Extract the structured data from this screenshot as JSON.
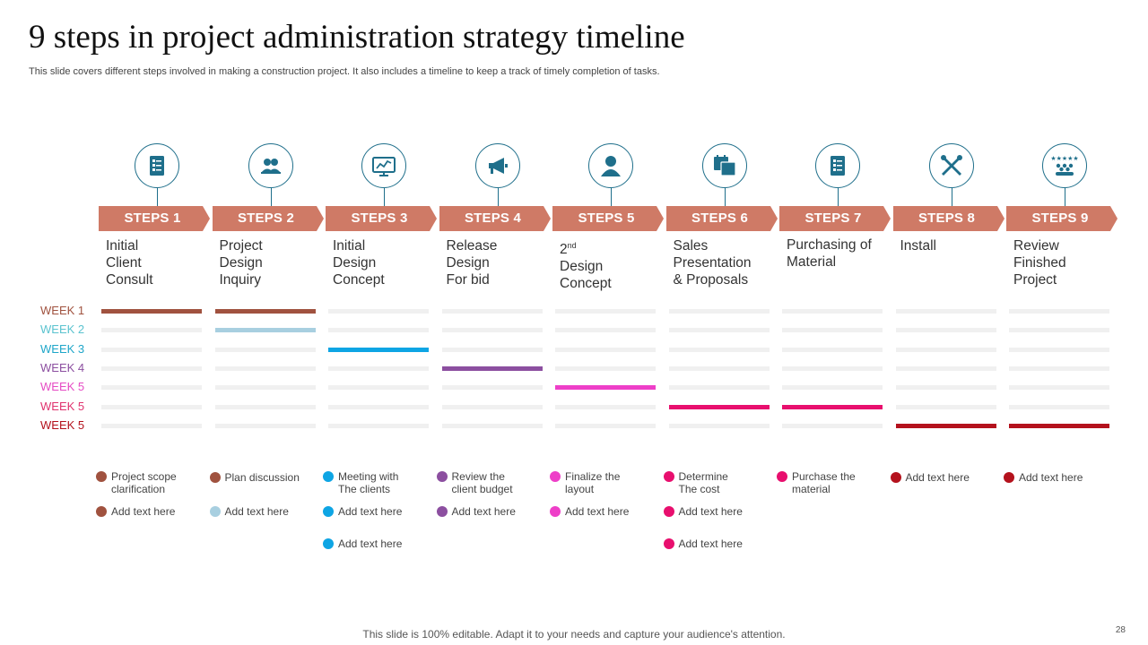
{
  "title": "9 steps in project administration strategy timeline",
  "subtitle": "This slide covers different steps involved in making a construction project. It also includes a timeline to keep a track of timely completion of tasks.",
  "weeks": [
    {
      "label": "WEEK 1",
      "color": "#a0523f"
    },
    {
      "label": "WEEK 2",
      "color": "#5bc3cf"
    },
    {
      "label": "WEEK 3",
      "color": "#1fa6c9"
    },
    {
      "label": "WEEK 4",
      "color": "#8c4fa0"
    },
    {
      "label": "WEEK 5",
      "color": "#e64cc4"
    },
    {
      "label": "WEEK 5",
      "color": "#e0336f"
    },
    {
      "label": "WEEK 5",
      "color": "#b4121d"
    }
  ],
  "steps": [
    {
      "label": "STEPS 1",
      "icon": "checklist-icon",
      "desc": [
        "Initial",
        "Client",
        "Consult"
      ],
      "active_weeks": [
        0
      ],
      "bar_color": "#a0523f",
      "legend": [
        {
          "text": [
            "Project scope",
            "clarification"
          ],
          "color": "#a0523f"
        },
        {
          "text": [
            "Add text here"
          ],
          "color": "#a0523f"
        }
      ]
    },
    {
      "label": "STEPS 2",
      "icon": "team-icon",
      "desc": [
        "Project",
        "Design",
        "Inquiry"
      ],
      "active_weeks": [
        0,
        1
      ],
      "bar_color": "#a0523f",
      "bar_color_alt": "#a8cfe0",
      "legend": [
        {
          "text": [
            "Plan discussion"
          ],
          "color": "#a0523f"
        },
        {
          "text": [
            "Add text here"
          ],
          "color": "#a8cfe0"
        }
      ]
    },
    {
      "label": "STEPS 3",
      "icon": "presentation-chart-icon",
      "desc": [
        "Initial",
        "Design",
        "Concept"
      ],
      "active_weeks": [
        2
      ],
      "bar_color": "#0ea5e4",
      "legend": [
        {
          "text": [
            "Meeting with",
            "The clients"
          ],
          "color": "#0ea5e4"
        },
        {
          "text": [
            "Add text here"
          ],
          "color": "#0ea5e4"
        },
        {
          "text": [
            "Add text here"
          ],
          "color": "#0ea5e4"
        }
      ]
    },
    {
      "label": "STEPS 4",
      "icon": "megaphone-icon",
      "desc": [
        "Release",
        "Design",
        "For bid"
      ],
      "active_weeks": [
        3
      ],
      "bar_color": "#8c4fa0",
      "legend": [
        {
          "text": [
            "Review the",
            "client budget"
          ],
          "color": "#8c4fa0"
        },
        {
          "text": [
            "Add text here"
          ],
          "color": "#8c4fa0"
        }
      ]
    },
    {
      "label": "STEPS 5",
      "icon": "person-icon",
      "desc": [
        "2",
        "Design",
        "Concept"
      ],
      "desc_sup": "nd",
      "active_weeks": [
        4
      ],
      "bar_color": "#ee3fc8",
      "legend": [
        {
          "text": [
            "Finalize the",
            "layout"
          ],
          "color": "#ee3fc8"
        },
        {
          "text": [
            "Add text here"
          ],
          "color": "#ee3fc8"
        }
      ]
    },
    {
      "label": "STEPS 6",
      "icon": "calendar-icon",
      "desc": [
        "Sales",
        "Presentation",
        "& Proposals"
      ],
      "active_weeks": [
        5
      ],
      "bar_color": "#e80f6e",
      "legend": [
        {
          "text": [
            "Determine",
            " The cost"
          ],
          "color": "#e80f6e"
        },
        {
          "text": [
            "Add text here"
          ],
          "color": "#e80f6e"
        },
        {
          "text": [
            "Add text here"
          ],
          "color": "#e80f6e"
        }
      ]
    },
    {
      "label": "STEPS 7",
      "icon": "checklist-icon",
      "desc": [
        "Purchasing of",
        "Material"
      ],
      "active_weeks": [
        5
      ],
      "bar_color": "#e80f6e",
      "legend": [
        {
          "text": [
            "Purchase the",
            "material"
          ],
          "color": "#e80f6e"
        }
      ]
    },
    {
      "label": "STEPS 8",
      "icon": "tools-icon",
      "desc": [
        "Install"
      ],
      "active_weeks": [
        6
      ],
      "bar_color": "#b4121d",
      "legend": [
        {
          "text": [
            "Add text here"
          ],
          "color": "#b4121d"
        }
      ]
    },
    {
      "label": "STEPS 9",
      "icon": "rating-group-icon",
      "desc": [
        "Review",
        "Finished",
        "Project"
      ],
      "active_weeks": [
        6
      ],
      "bar_color": "#b4121d",
      "legend": [
        {
          "text": [
            "Add text here"
          ],
          "color": "#b4121d"
        }
      ]
    }
  ],
  "colors": {
    "arrow": "#cf7a66",
    "icon": "#1f6f8b"
  },
  "footer": "This slide is 100% editable. Adapt it to your needs and capture your audience's attention.",
  "page_number": "28"
}
